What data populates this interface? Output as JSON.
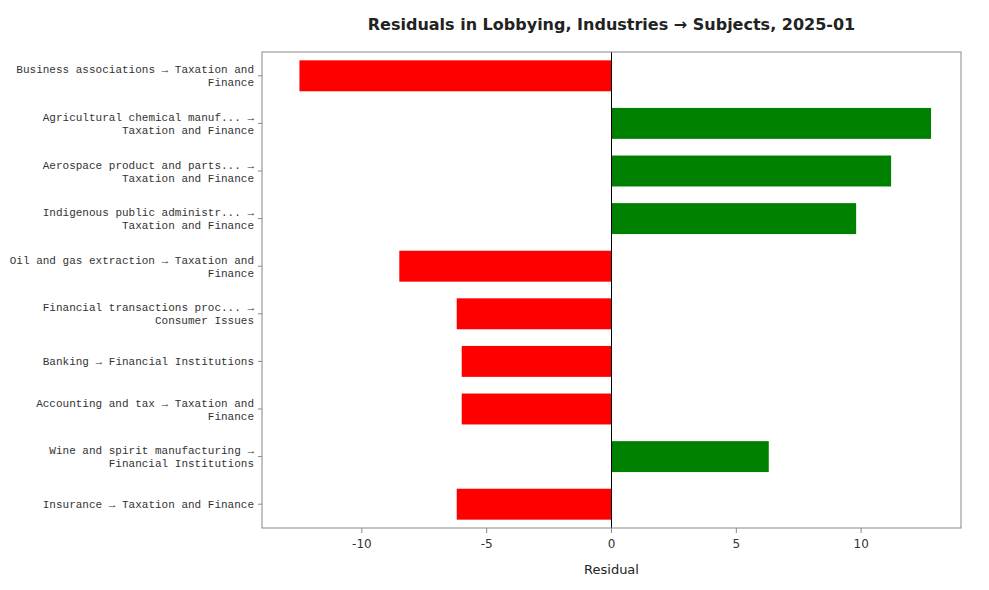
{
  "chart_data": {
    "type": "bar",
    "orientation": "horizontal",
    "title": "Residuals in Lobbying, Industries → Subjects, 2025-01",
    "xlabel": "Residual",
    "categories": [
      "Business associations → Taxation and\nFinance",
      "Agricultural chemical manuf... →\nTaxation and Finance",
      "Aerospace product and parts... →\nTaxation and Finance",
      "Indigenous public administr... →\nTaxation and Finance",
      "Oil and gas extraction → Taxation and\nFinance",
      "Financial transactions proc... →\nConsumer Issues",
      "Banking → Financial Institutions",
      "Accounting and tax → Taxation and\nFinance",
      "Wine and spirit manufacturing →\nFinancial Institutions",
      "Insurance → Taxation and Finance"
    ],
    "values": [
      -12.5,
      12.8,
      11.2,
      9.8,
      -8.5,
      -6.2,
      -6.0,
      -6.0,
      6.3,
      -6.2
    ],
    "colors": [
      "#ff0000",
      "#008000",
      "#008000",
      "#008000",
      "#ff0000",
      "#ff0000",
      "#ff0000",
      "#ff0000",
      "#008000",
      "#ff0000"
    ],
    "xlim": [
      -14,
      14
    ],
    "xticks": [
      -10,
      -5,
      0,
      5,
      10
    ],
    "grid": false
  }
}
